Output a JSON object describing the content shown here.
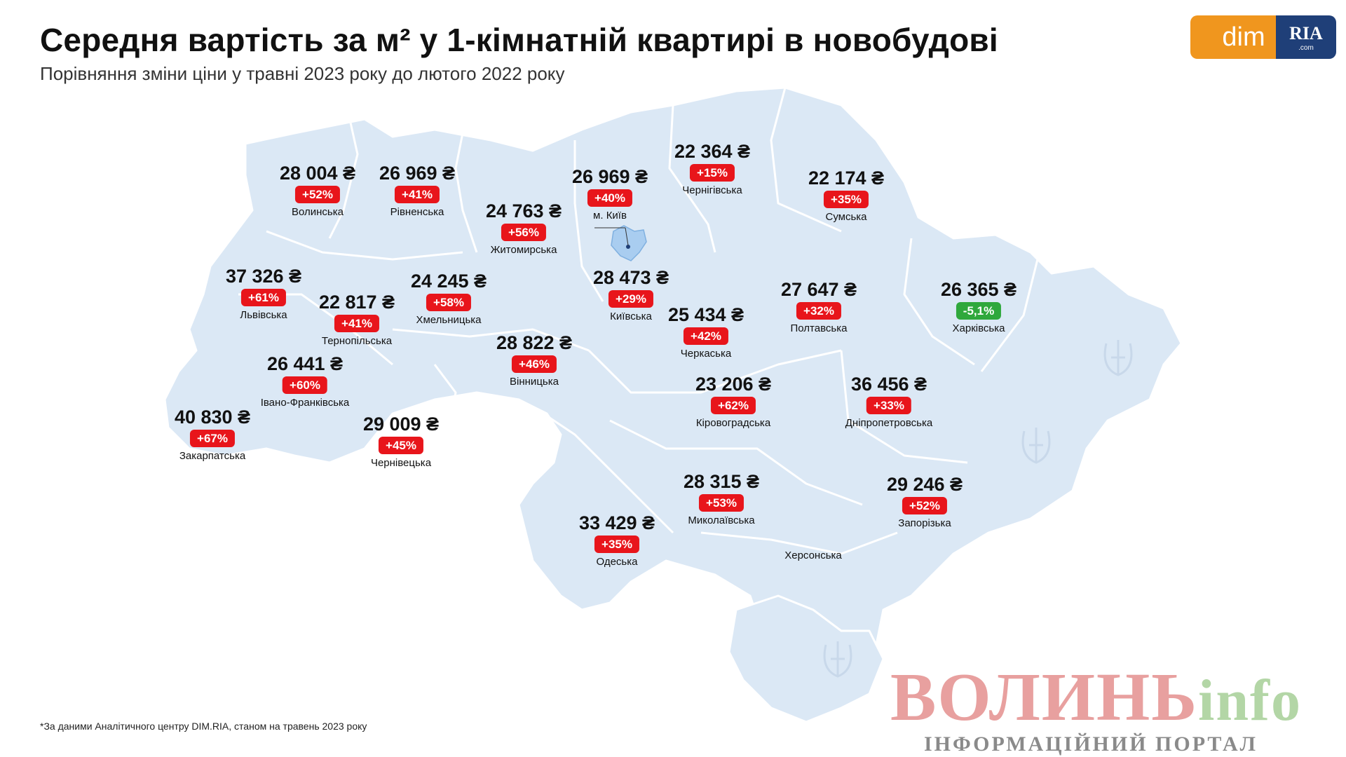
{
  "header": {
    "title": "Середня вартість за м² у 1-кімнатній квартирі в новобудові",
    "subtitle": "Порівняння зміни ціни у травні 2023 року до лютого 2022 року"
  },
  "logo": {
    "dim": "dim",
    "ria": "RIA",
    "ria_sub": ".com"
  },
  "colors": {
    "map_fill": "#dbe8f5",
    "map_border": "#ffffff",
    "increase": "#e8151b",
    "decrease": "#2fa83c",
    "kyiv_city": "#a9cdf0"
  },
  "regions": [
    {
      "name": "Волинська",
      "price": "28 004 ₴",
      "change": "+52%",
      "trend": "up"
    },
    {
      "name": "Рівненська",
      "price": "26 969 ₴",
      "change": "+41%",
      "trend": "up"
    },
    {
      "name": "Житомирська",
      "price": "24 763 ₴",
      "change": "+56%",
      "trend": "up"
    },
    {
      "name": "м. Київ",
      "price": "26 969 ₴",
      "change": "+40%",
      "trend": "up"
    },
    {
      "name": "Чернігівська",
      "price": "22 364 ₴",
      "change": "+15%",
      "trend": "up"
    },
    {
      "name": "Сумська",
      "price": "22 174 ₴",
      "change": "+35%",
      "trend": "up"
    },
    {
      "name": "Львівська",
      "price": "37 326 ₴",
      "change": "+61%",
      "trend": "up"
    },
    {
      "name": "Тернопільська",
      "price": "22 817 ₴",
      "change": "+41%",
      "trend": "up"
    },
    {
      "name": "Хмельницька",
      "price": "24 245 ₴",
      "change": "+58%",
      "trend": "up"
    },
    {
      "name": "Київська",
      "price": "28 473 ₴",
      "change": "+29%",
      "trend": "up"
    },
    {
      "name": "Черкаська",
      "price": "25 434 ₴",
      "change": "+42%",
      "trend": "up"
    },
    {
      "name": "Полтавська",
      "price": "27 647 ₴",
      "change": "+32%",
      "trend": "up"
    },
    {
      "name": "Харківська",
      "price": "26 365 ₴",
      "change": "-5,1%",
      "trend": "down"
    },
    {
      "name": "Вінницька",
      "price": "28 822 ₴",
      "change": "+46%",
      "trend": "up"
    },
    {
      "name": "Івано-Франківська",
      "price": "26 441 ₴",
      "change": "+60%",
      "trend": "up"
    },
    {
      "name": "Закарпатська",
      "price": "40 830 ₴",
      "change": "+67%",
      "trend": "up"
    },
    {
      "name": "Чернівецька",
      "price": "29 009 ₴",
      "change": "+45%",
      "trend": "up"
    },
    {
      "name": "Кіровоградська",
      "price": "23 206 ₴",
      "change": "+62%",
      "trend": "up"
    },
    {
      "name": "Дніпропетровська",
      "price": "36 456 ₴",
      "change": "+33%",
      "trend": "up"
    },
    {
      "name": "Миколаївська",
      "price": "28 315 ₴",
      "change": "+53%",
      "trend": "up"
    },
    {
      "name": "Запорізька",
      "price": "29 246 ₴",
      "change": "+52%",
      "trend": "up"
    },
    {
      "name": "Одеська",
      "price": "33 429 ₴",
      "change": "+35%",
      "trend": "up"
    },
    {
      "name": "Херсонська",
      "price": "",
      "change": "",
      "trend": "none"
    }
  ],
  "footnote": "*За даними Аналітичного центру DIM.RIA, станом на травень 2023 року",
  "watermark": {
    "main": "ВОЛИНЬ",
    "suffix": "info",
    "tagline": "ІНФОРМАЦІЙНИЙ ПОРТАЛ"
  }
}
